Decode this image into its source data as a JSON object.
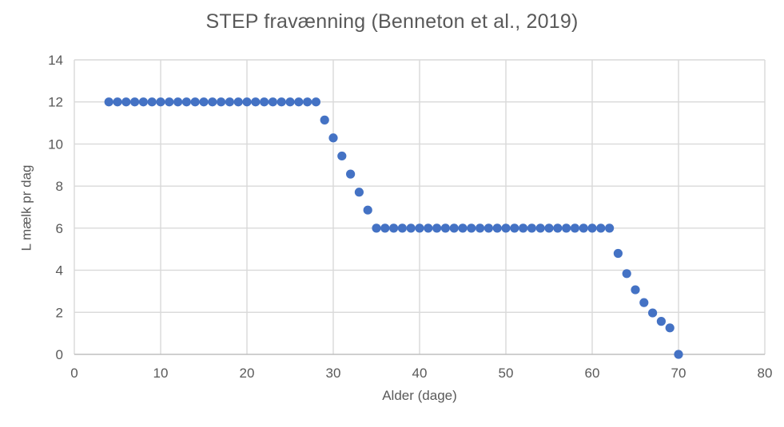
{
  "chart_data": {
    "type": "scatter",
    "title": "STEP fravænning (Benneton et al., 2019)",
    "xlabel": "Alder (dage)",
    "ylabel": "L mælk pr dag",
    "xlim": [
      0,
      80
    ],
    "ylim": [
      0,
      14
    ],
    "x_ticks": [
      0,
      10,
      20,
      30,
      40,
      50,
      60,
      70,
      80
    ],
    "y_ticks": [
      0,
      2,
      4,
      6,
      8,
      10,
      12,
      14
    ],
    "grid": true,
    "legend": false,
    "points": [
      [
        4,
        12
      ],
      [
        5,
        12
      ],
      [
        6,
        12
      ],
      [
        7,
        12
      ],
      [
        8,
        12
      ],
      [
        9,
        12
      ],
      [
        10,
        12
      ],
      [
        11,
        12
      ],
      [
        12,
        12
      ],
      [
        13,
        12
      ],
      [
        14,
        12
      ],
      [
        15,
        12
      ],
      [
        16,
        12
      ],
      [
        17,
        12
      ],
      [
        18,
        12
      ],
      [
        19,
        12
      ],
      [
        20,
        12
      ],
      [
        21,
        12
      ],
      [
        22,
        12
      ],
      [
        23,
        12
      ],
      [
        24,
        12
      ],
      [
        25,
        12
      ],
      [
        26,
        12
      ],
      [
        27,
        12
      ],
      [
        28,
        12
      ],
      [
        29,
        11.14
      ],
      [
        30,
        10.29
      ],
      [
        31,
        9.43
      ],
      [
        32,
        8.57
      ],
      [
        33,
        7.71
      ],
      [
        34,
        6.86
      ],
      [
        35,
        6
      ],
      [
        36,
        6
      ],
      [
        37,
        6
      ],
      [
        38,
        6
      ],
      [
        39,
        6
      ],
      [
        40,
        6
      ],
      [
        41,
        6
      ],
      [
        42,
        6
      ],
      [
        43,
        6
      ],
      [
        44,
        6
      ],
      [
        45,
        6
      ],
      [
        46,
        6
      ],
      [
        47,
        6
      ],
      [
        48,
        6
      ],
      [
        49,
        6
      ],
      [
        50,
        6
      ],
      [
        51,
        6
      ],
      [
        52,
        6
      ],
      [
        53,
        6
      ],
      [
        54,
        6
      ],
      [
        55,
        6
      ],
      [
        56,
        6
      ],
      [
        57,
        6
      ],
      [
        58,
        6
      ],
      [
        59,
        6
      ],
      [
        60,
        6
      ],
      [
        61,
        6
      ],
      [
        62,
        6
      ],
      [
        63,
        4.8
      ],
      [
        64,
        3.84
      ],
      [
        65,
        3.07
      ],
      [
        66,
        2.46
      ],
      [
        67,
        1.97
      ],
      [
        68,
        1.57
      ],
      [
        69,
        1.26
      ],
      [
        70,
        0
      ]
    ]
  },
  "colors": {
    "marker": "#4472C4",
    "title_text": "#595959",
    "tick_label": "#595959",
    "gridline": "#D9D9D9",
    "axis_line": "#BFBFBF"
  }
}
